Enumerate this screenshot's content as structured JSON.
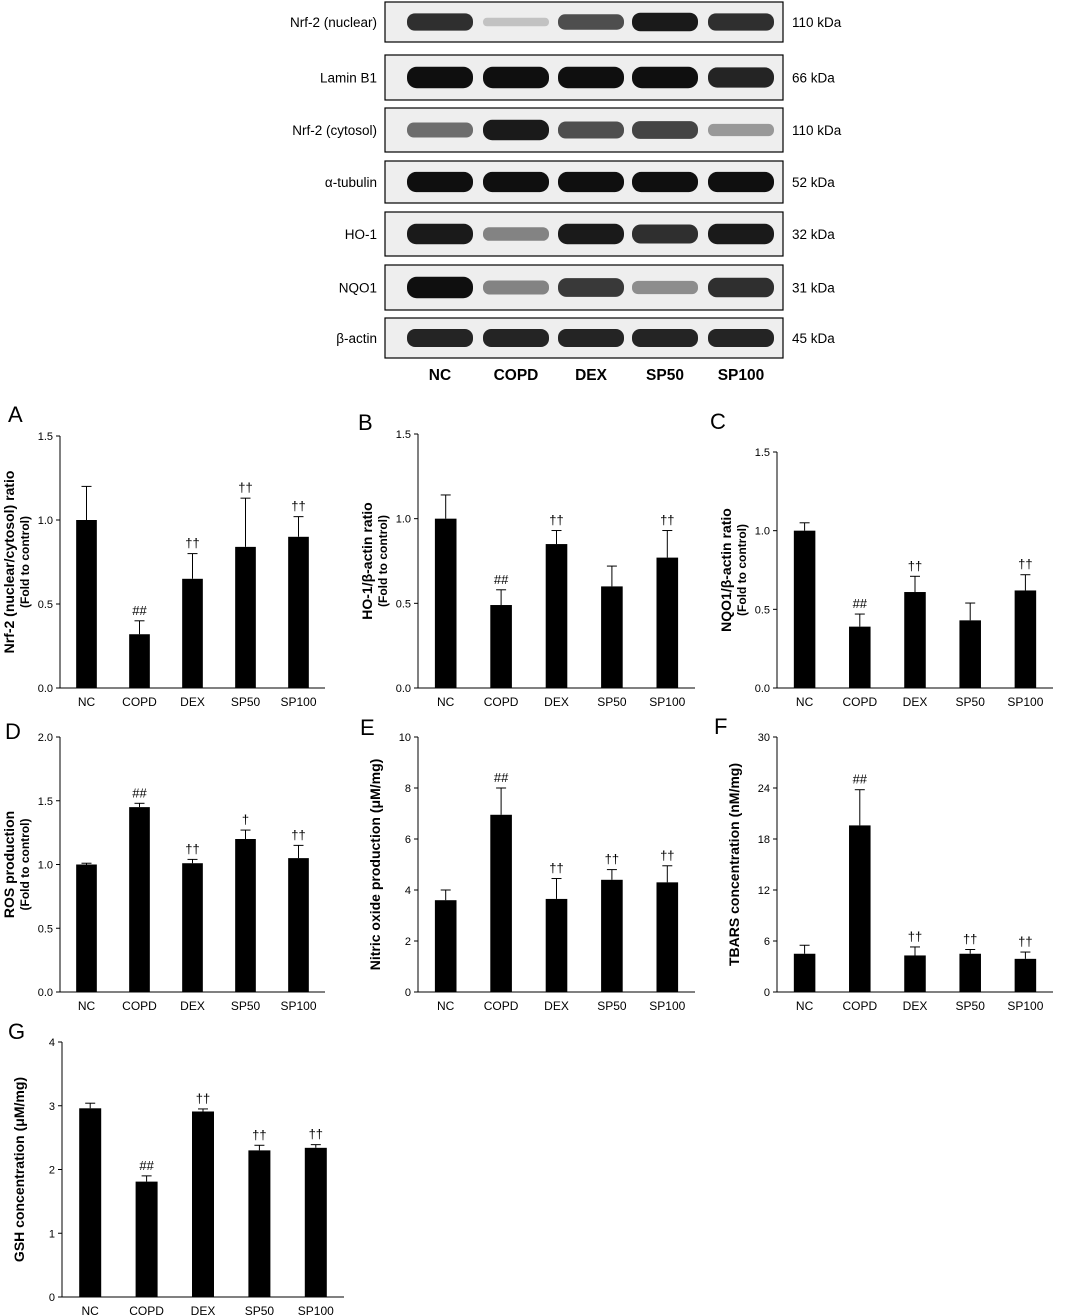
{
  "blot": {
    "rows": [
      {
        "label": "Nrf-2 (nuclear)",
        "kda": "110 kDa",
        "intensity": [
          0.85,
          0.15,
          0.7,
          0.95,
          0.85
        ]
      },
      {
        "label": "Lamin B1",
        "kda": "66 kDa",
        "intensity": [
          1.0,
          1.0,
          1.0,
          1.0,
          0.9
        ]
      },
      {
        "label": "Nrf-2 (cytosol)",
        "kda": "110 kDa",
        "intensity": [
          0.55,
          0.95,
          0.7,
          0.75,
          0.35
        ]
      },
      {
        "label": "α-tubulin",
        "kda": "52 kDa",
        "intensity": [
          1.0,
          1.0,
          1.0,
          1.0,
          1.0
        ]
      },
      {
        "label": "HO-1",
        "kda": "32 kDa",
        "intensity": [
          0.95,
          0.45,
          0.95,
          0.85,
          0.95
        ]
      },
      {
        "label": "NQO1",
        "kda": "31 kDa",
        "intensity": [
          1.0,
          0.45,
          0.8,
          0.4,
          0.85
        ]
      },
      {
        "label": "β-actin",
        "kda": "45 kDa",
        "intensity": [
          0.9,
          0.9,
          0.9,
          0.9,
          0.9
        ]
      }
    ],
    "lanes": [
      "NC",
      "COPD",
      "DEX",
      "SP50",
      "SP100"
    ]
  },
  "chart_data": [
    {
      "panel": "A",
      "type": "bar",
      "categories": [
        "NC",
        "COPD",
        "DEX",
        "SP50",
        "SP100"
      ],
      "values": [
        1.0,
        0.32,
        0.65,
        0.84,
        0.9
      ],
      "errors": [
        0.2,
        0.08,
        0.15,
        0.29,
        0.12
      ],
      "annotations": [
        "",
        "##",
        "††",
        "††",
        "††"
      ],
      "ylabel": "Nrf-2 (nuclear/cytosol) ratio",
      "ylabel2": "(Fold to control)",
      "ylim": [
        0,
        1.5
      ],
      "ticks": [
        0.0,
        0.5,
        1.0,
        1.5
      ],
      "tick_labels": [
        "0.0",
        "0.5",
        "1.0",
        "1.5"
      ]
    },
    {
      "panel": "B",
      "type": "bar",
      "categories": [
        "NC",
        "COPD",
        "DEX",
        "SP50",
        "SP100"
      ],
      "values": [
        1.0,
        0.49,
        0.85,
        0.6,
        0.77
      ],
      "errors": [
        0.14,
        0.09,
        0.08,
        0.12,
        0.16
      ],
      "annotations": [
        "",
        "##",
        "††",
        "",
        "††"
      ],
      "ylabel": "HO-1/β-actin ratio",
      "ylabel2": "(Fold to control)",
      "ylim": [
        0,
        1.5
      ],
      "ticks": [
        0.0,
        0.5,
        1.0,
        1.5
      ],
      "tick_labels": [
        "0.0",
        "0.5",
        "1.0",
        "1.5"
      ]
    },
    {
      "panel": "C",
      "type": "bar",
      "categories": [
        "NC",
        "COPD",
        "DEX",
        "SP50",
        "SP100"
      ],
      "values": [
        1.0,
        0.39,
        0.61,
        0.43,
        0.62
      ],
      "errors": [
        0.05,
        0.08,
        0.1,
        0.11,
        0.1
      ],
      "annotations": [
        "",
        "##",
        "††",
        "",
        "††"
      ],
      "ylabel": "NQO1/β-actin ratio",
      "ylabel2": "(Fold to control)",
      "ylim": [
        0,
        1.5
      ],
      "ticks": [
        0.0,
        0.5,
        1.0,
        1.5
      ],
      "tick_labels": [
        "0.0",
        "0.5",
        "1.0",
        "1.5"
      ]
    },
    {
      "panel": "D",
      "type": "bar",
      "categories": [
        "NC",
        "COPD",
        "DEX",
        "SP50",
        "SP100"
      ],
      "values": [
        1.0,
        1.45,
        1.01,
        1.2,
        1.05
      ],
      "errors": [
        0.01,
        0.03,
        0.03,
        0.07,
        0.1
      ],
      "annotations": [
        "",
        "##",
        "††",
        "†",
        "††"
      ],
      "ylabel": "ROS production",
      "ylabel2": "(Fold to control)",
      "ylim": [
        0,
        2.0
      ],
      "ticks": [
        0.0,
        0.5,
        1.0,
        1.5,
        2.0
      ],
      "tick_labels": [
        "0.0",
        "0.5",
        "1.0",
        "1.5",
        "2.0"
      ]
    },
    {
      "panel": "E",
      "type": "bar",
      "categories": [
        "NC",
        "COPD",
        "DEX",
        "SP50",
        "SP100"
      ],
      "values": [
        3.6,
        6.95,
        3.65,
        4.4,
        4.3
      ],
      "errors": [
        0.4,
        1.05,
        0.8,
        0.4,
        0.65
      ],
      "annotations": [
        "",
        "##",
        "††",
        "††",
        "††"
      ],
      "ylabel": "Nitric oxide production (μM/mg)",
      "ylabel2": "",
      "ylim": [
        0,
        10
      ],
      "ticks": [
        0,
        2,
        4,
        6,
        8,
        10
      ],
      "tick_labels": [
        "0",
        "2",
        "4",
        "6",
        "8",
        "10"
      ]
    },
    {
      "panel": "F",
      "type": "bar",
      "categories": [
        "NC",
        "COPD",
        "DEX",
        "SP50",
        "SP100"
      ],
      "values": [
        4.5,
        19.6,
        4.3,
        4.5,
        3.9
      ],
      "errors": [
        1.0,
        4.2,
        1.0,
        0.5,
        0.8
      ],
      "annotations": [
        "",
        "##",
        "††",
        "††",
        "††"
      ],
      "ylabel": "TBARS concentration (nM/mg)",
      "ylabel2": "",
      "ylim": [
        0,
        30
      ],
      "ticks": [
        0,
        6,
        12,
        18,
        24,
        30
      ],
      "tick_labels": [
        "0",
        "6",
        "12",
        "18",
        "24",
        "30"
      ]
    },
    {
      "panel": "G",
      "type": "bar",
      "categories": [
        "NC",
        "COPD",
        "DEX",
        "SP50",
        "SP100"
      ],
      "values": [
        2.96,
        1.81,
        2.91,
        2.3,
        2.34
      ],
      "errors": [
        0.08,
        0.09,
        0.04,
        0.08,
        0.05
      ],
      "annotations": [
        "",
        "##",
        "††",
        "††",
        "††"
      ],
      "ylabel": "GSH concentration (μM/mg)",
      "ylabel2": "",
      "ylim": [
        0,
        4
      ],
      "ticks": [
        0,
        1,
        2,
        3,
        4
      ],
      "tick_labels": [
        "0",
        "1",
        "2",
        "3",
        "4"
      ]
    }
  ]
}
